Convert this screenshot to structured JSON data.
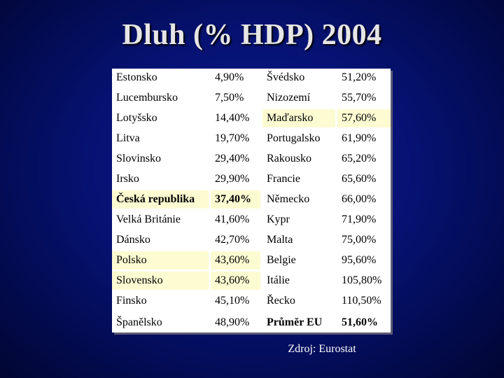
{
  "slide": {
    "title": "Dluh (% HDP) 2004",
    "source": "Zdroj: Eurostat"
  },
  "table": {
    "rows": [
      {
        "left_country": "Estonsko",
        "left_value": "4,90%",
        "right_country": "Švédsko",
        "right_value": "51,20%"
      },
      {
        "left_country": "Lucembursko",
        "left_value": "7,50%",
        "right_country": "Nizozemí",
        "right_value": "55,70%"
      },
      {
        "left_country": "Lotyšsko",
        "left_value": "14,40%",
        "right_country": "Maďarsko",
        "right_value": "57,60%"
      },
      {
        "left_country": "Litva",
        "left_value": "19,70%",
        "right_country": "Portugalsko",
        "right_value": "61,90%"
      },
      {
        "left_country": "Slovinsko",
        "left_value": "29,40%",
        "right_country": "Rakousko",
        "right_value": "65,20%"
      },
      {
        "left_country": "Irsko",
        "left_value": "29,90%",
        "right_country": "Francie",
        "right_value": "65,60%"
      },
      {
        "left_country": "Česká republika",
        "left_value": "37,40%",
        "right_country": "Německo",
        "right_value": "66,00%"
      },
      {
        "left_country": "Velká Británie",
        "left_value": "41,60%",
        "right_country": "Kypr",
        "right_value": "71,90%"
      },
      {
        "left_country": "Dánsko",
        "left_value": "42,70%",
        "right_country": "Malta",
        "right_value": "75,00%"
      },
      {
        "left_country": "Polsko",
        "left_value": "43,60%",
        "right_country": "Belgie",
        "right_value": "95,60%"
      },
      {
        "left_country": "Slovensko",
        "left_value": "43,60%",
        "right_country": "Itálie",
        "right_value": "105,80%"
      },
      {
        "left_country": "Finsko",
        "left_value": "45,10%",
        "right_country": "Řecko",
        "right_value": "110,50%"
      },
      {
        "left_country": "Španělsko",
        "left_value": "48,90%",
        "right_country": "Průměr EU",
        "right_value": "51,60%"
      }
    ]
  },
  "colors": {
    "background": "#061273",
    "title_text": "#e6e6e6",
    "cell_white": "#ffffff",
    "cell_highlight": "#fdfbd2"
  }
}
